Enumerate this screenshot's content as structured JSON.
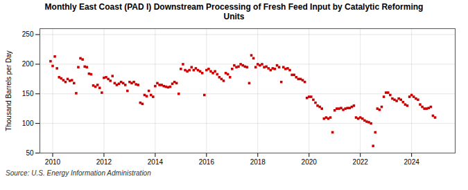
{
  "chart_data": {
    "type": "scatter",
    "title": "Monthly East Coast (PAD I) Downstream Processing of Fresh Feed Input by Catalytic Reforming\nUnits",
    "ylabel": "Thousand Barrels per Day",
    "annotations": [
      "Source: U.S. Energy Information Administration"
    ],
    "color": "#cc0000",
    "marker": "square",
    "grid": true,
    "xlim": [
      2009.5,
      2025.7
    ],
    "xticks": [
      2010,
      2012,
      2014,
      2016,
      2018,
      2020,
      2022,
      2024
    ],
    "ylim": [
      50,
      260
    ],
    "yticks": [
      50,
      100,
      150,
      200,
      250
    ],
    "x": [
      2009.917,
      2010.0,
      2010.083,
      2010.167,
      2010.25,
      2010.333,
      2010.417,
      2010.5,
      2010.583,
      2010.667,
      2010.75,
      2010.833,
      2010.917,
      2011.0,
      2011.083,
      2011.167,
      2011.25,
      2011.333,
      2011.417,
      2011.5,
      2011.583,
      2011.667,
      2011.75,
      2011.833,
      2011.917,
      2012.0,
      2012.083,
      2012.167,
      2012.25,
      2012.333,
      2012.417,
      2012.5,
      2012.583,
      2012.667,
      2012.75,
      2012.833,
      2012.917,
      2013.0,
      2013.083,
      2013.167,
      2013.25,
      2013.333,
      2013.417,
      2013.5,
      2013.583,
      2013.667,
      2013.75,
      2013.833,
      2013.917,
      2014.0,
      2014.083,
      2014.167,
      2014.25,
      2014.333,
      2014.417,
      2014.5,
      2014.583,
      2014.667,
      2014.75,
      2014.833,
      2014.917,
      2015.0,
      2015.083,
      2015.167,
      2015.25,
      2015.333,
      2015.417,
      2015.5,
      2015.583,
      2015.667,
      2015.75,
      2015.833,
      2015.917,
      2016.0,
      2016.083,
      2016.167,
      2016.25,
      2016.333,
      2016.417,
      2016.5,
      2016.583,
      2016.667,
      2016.75,
      2016.833,
      2016.917,
      2017.0,
      2017.083,
      2017.167,
      2017.25,
      2017.333,
      2017.417,
      2017.5,
      2017.583,
      2017.667,
      2017.75,
      2017.833,
      2017.917,
      2018.0,
      2018.083,
      2018.167,
      2018.25,
      2018.333,
      2018.417,
      2018.5,
      2018.583,
      2018.667,
      2018.75,
      2018.833,
      2018.917,
      2019.0,
      2019.083,
      2019.167,
      2019.25,
      2019.333,
      2019.417,
      2019.5,
      2019.583,
      2019.667,
      2019.75,
      2019.833,
      2019.917,
      2020.0,
      2020.083,
      2020.167,
      2020.25,
      2020.333,
      2020.417,
      2020.5,
      2020.583,
      2020.667,
      2020.75,
      2020.833,
      2020.917,
      2021.0,
      2021.083,
      2021.167,
      2021.25,
      2021.333,
      2021.417,
      2021.5,
      2021.583,
      2021.667,
      2021.75,
      2021.833,
      2021.917,
      2022.0,
      2022.083,
      2022.167,
      2022.25,
      2022.333,
      2022.417,
      2022.5,
      2022.583,
      2022.667,
      2022.75,
      2022.833,
      2022.917,
      2023.0,
      2023.083,
      2023.167,
      2023.25,
      2023.333,
      2023.417,
      2023.5,
      2023.583,
      2023.667,
      2023.75,
      2023.833,
      2023.917,
      2024.0,
      2024.083,
      2024.167,
      2024.25,
      2024.333,
      2024.417,
      2024.5,
      2024.583,
      2024.667,
      2024.75,
      2024.833,
      2024.917
    ],
    "values": [
      205,
      197,
      213,
      193,
      178,
      176,
      173,
      170,
      175,
      172,
      173,
      168,
      151,
      195,
      210,
      208,
      196,
      195,
      184,
      183,
      164,
      162,
      165,
      160,
      152,
      177,
      178,
      175,
      172,
      180,
      168,
      165,
      167,
      170,
      168,
      165,
      155,
      170,
      168,
      170,
      166,
      165,
      135,
      133,
      148,
      146,
      155,
      148,
      145,
      163,
      168,
      165,
      165,
      163,
      162,
      161,
      162,
      167,
      170,
      168,
      150,
      192,
      200,
      190,
      188,
      190,
      195,
      190,
      193,
      190,
      188,
      185,
      148,
      190,
      192,
      188,
      185,
      188,
      183,
      178,
      175,
      172,
      185,
      183,
      178,
      192,
      198,
      195,
      196,
      200,
      198,
      196,
      195,
      168,
      215,
      210,
      195,
      200,
      198,
      200,
      195,
      196,
      193,
      190,
      193,
      192,
      198,
      195,
      170,
      195,
      192,
      193,
      190,
      182,
      182,
      178,
      175,
      175,
      173,
      170,
      143,
      145,
      145,
      140,
      135,
      130,
      128,
      125,
      108,
      110,
      108,
      110,
      85,
      122,
      125,
      125,
      126,
      123,
      125,
      126,
      126,
      128,
      130,
      110,
      108,
      110,
      108,
      105,
      103,
      102,
      100,
      62,
      85,
      125,
      123,
      128,
      145,
      152,
      152,
      148,
      142,
      140,
      138,
      142,
      140,
      136,
      132,
      130,
      145,
      148,
      145,
      142,
      140,
      132,
      128,
      125,
      125,
      126,
      128,
      113,
      110
    ]
  }
}
